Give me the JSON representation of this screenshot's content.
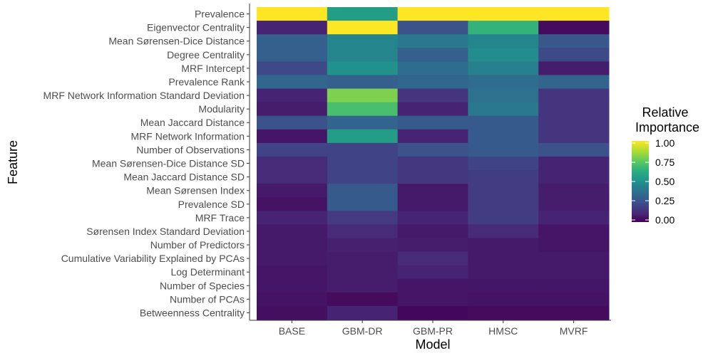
{
  "chart_data": {
    "type": "heatmap",
    "xlabel": "Model",
    "ylabel": "Feature",
    "x_categories": [
      "BASE",
      "GBM-DR",
      "GBM-PR",
      "HMSC",
      "MVRF"
    ],
    "y_categories": [
      "Prevalence",
      "Eigenvector Centrality",
      "Mean Sørensen-Dice Distance",
      "Degree Centrality",
      "MRF Intercept",
      "Prevalence Rank",
      "MRF Network Information Standard Deviation",
      "Modularity",
      "Mean Jaccard Distance",
      "MRF Network Information",
      "Number of Observations",
      "Mean Sørensen-Dice Distance SD",
      "Mean Jaccard Distance SD",
      "Mean Sørensen Index",
      "Prevalence SD",
      "MRF Trace",
      "Sørensen Index Standard Deviation",
      "Number of Predictors",
      "Cumulative Variability Explained by PCAs",
      "Log Determinant",
      "Number of Species",
      "Number of PCAs",
      "Betweenness Centrality"
    ],
    "values": [
      [
        1.0,
        0.55,
        1.0,
        1.0,
        1.0
      ],
      [
        0.1,
        1.0,
        0.25,
        0.65,
        0.03
      ],
      [
        0.3,
        0.45,
        0.4,
        0.45,
        0.27
      ],
      [
        0.3,
        0.45,
        0.3,
        0.48,
        0.22
      ],
      [
        0.22,
        0.5,
        0.35,
        0.43,
        0.08
      ],
      [
        0.33,
        0.3,
        0.33,
        0.35,
        0.32
      ],
      [
        0.1,
        0.8,
        0.15,
        0.37,
        0.15
      ],
      [
        0.08,
        0.7,
        0.1,
        0.4,
        0.15
      ],
      [
        0.25,
        0.32,
        0.28,
        0.28,
        0.15
      ],
      [
        0.06,
        0.55,
        0.1,
        0.28,
        0.15
      ],
      [
        0.2,
        0.2,
        0.25,
        0.28,
        0.25
      ],
      [
        0.12,
        0.2,
        0.16,
        0.2,
        0.1
      ],
      [
        0.12,
        0.2,
        0.16,
        0.18,
        0.1
      ],
      [
        0.07,
        0.28,
        0.07,
        0.18,
        0.08
      ],
      [
        0.05,
        0.28,
        0.07,
        0.18,
        0.08
      ],
      [
        0.1,
        0.17,
        0.1,
        0.18,
        0.1
      ],
      [
        0.07,
        0.12,
        0.07,
        0.12,
        0.06
      ],
      [
        0.07,
        0.09,
        0.08,
        0.07,
        0.06
      ],
      [
        0.07,
        0.08,
        0.12,
        0.07,
        0.07
      ],
      [
        0.06,
        0.08,
        0.1,
        0.07,
        0.07
      ],
      [
        0.06,
        0.08,
        0.06,
        0.06,
        0.06
      ],
      [
        0.05,
        0.03,
        0.06,
        0.05,
        0.05
      ],
      [
        0.04,
        0.1,
        0.02,
        0.03,
        0.03
      ]
    ],
    "legend": {
      "title_lines": [
        "Relative",
        "Importance"
      ],
      "ticks": [
        1.0,
        0.75,
        0.5,
        0.25,
        0.0
      ],
      "tick_labels": [
        "1.00",
        "0.75",
        "0.50",
        "0.25",
        "0.00"
      ],
      "range": [
        0,
        1
      ],
      "position": "right",
      "colormap": "viridis"
    },
    "colormap_stops": [
      "#440154",
      "#472d7b",
      "#3b528b",
      "#2c728e",
      "#21918c",
      "#28ae80",
      "#5ec962",
      "#addc30",
      "#fde725"
    ]
  }
}
